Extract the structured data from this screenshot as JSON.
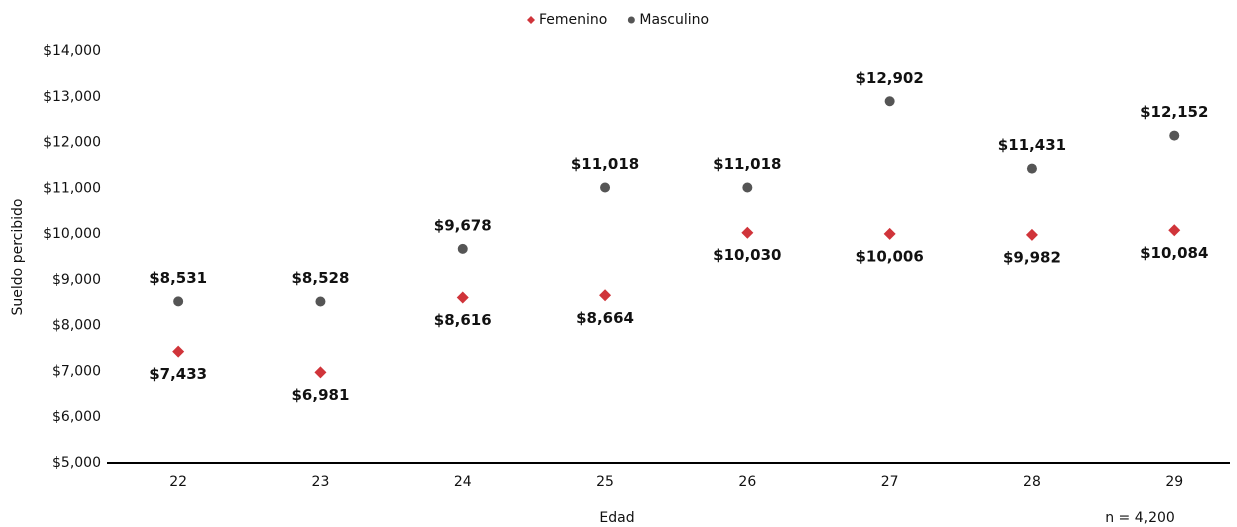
{
  "chart_data": {
    "type": "scatter",
    "categories": [
      "22",
      "23",
      "24",
      "25",
      "26",
      "27",
      "28",
      "29"
    ],
    "series": [
      {
        "name": "Femenino",
        "color": "#d0343a",
        "marker": "diamond",
        "values": [
          7433,
          6981,
          8616,
          8664,
          10030,
          10006,
          9982,
          10084
        ],
        "value_labels": [
          "$7,433",
          "$6,981",
          "$8,616",
          "$8,664",
          "$10,030",
          "$10,006",
          "$9,982",
          "$10,084"
        ]
      },
      {
        "name": "Masculino",
        "color": "#555555",
        "marker": "circle",
        "values": [
          8531,
          8528,
          9678,
          11018,
          11018,
          12902,
          11431,
          12152
        ],
        "value_labels": [
          "$8,531",
          "$8,528",
          "$9,678",
          "$11,018",
          "$11,018",
          "$12,902",
          "$11,431",
          "$12,152"
        ]
      }
    ],
    "ylabel": "Sueldo percibido",
    "xlabel": "Edad",
    "annotation": "n = 4,200",
    "ylim": [
      5000,
      14000
    ],
    "yticks": [
      {
        "value": 5000,
        "label": "$5,000"
      },
      {
        "value": 6000,
        "label": "$6,000"
      },
      {
        "value": 7000,
        "label": "$7,000"
      },
      {
        "value": 8000,
        "label": "$8,000"
      },
      {
        "value": 9000,
        "label": "$9,000"
      },
      {
        "value": 10000,
        "label": "$10,000"
      },
      {
        "value": 11000,
        "label": "$11,000"
      },
      {
        "value": 12000,
        "label": "$12,000"
      },
      {
        "value": 13000,
        "label": "$13,000"
      },
      {
        "value": 14000,
        "label": "$14,000"
      }
    ],
    "grid": false,
    "legend": "top"
  }
}
